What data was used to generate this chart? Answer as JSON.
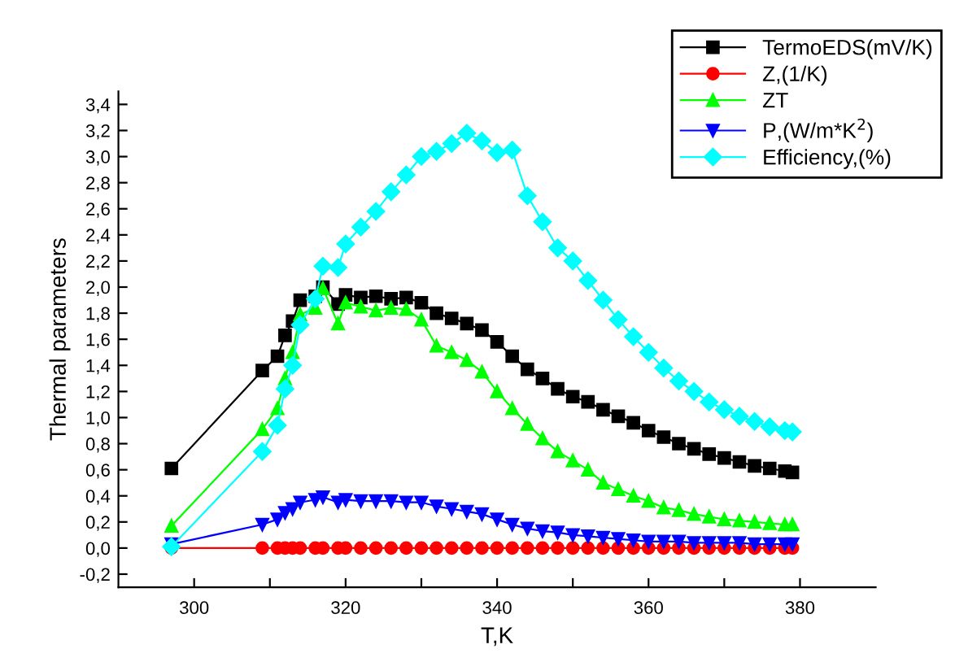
{
  "chart_data": {
    "type": "line",
    "xlabel": "T,K",
    "ylabel": "Thermal parameters",
    "x": [
      297,
      309,
      311,
      312,
      313,
      314,
      316,
      317,
      319,
      320,
      322,
      324,
      326,
      328,
      330,
      332,
      334,
      336,
      338,
      340,
      342,
      344,
      346,
      348,
      350,
      352,
      354,
      356,
      358,
      360,
      362,
      364,
      366,
      368,
      370,
      372,
      374,
      376,
      378,
      379
    ],
    "xlim": [
      290,
      390
    ],
    "xticks": [
      {
        "value": 300,
        "label": "300"
      },
      {
        "value": 310,
        "label": null
      },
      {
        "value": 320,
        "label": "320"
      },
      {
        "value": 330,
        "label": null
      },
      {
        "value": 340,
        "label": "340"
      },
      {
        "value": 350,
        "label": null
      },
      {
        "value": 360,
        "label": "360"
      },
      {
        "value": 370,
        "label": null
      },
      {
        "value": 380,
        "label": "380"
      }
    ],
    "ylim": [
      -0.3,
      3.5
    ],
    "yticks": [
      {
        "value": -0.2,
        "label": "-0,2"
      },
      {
        "value": 0,
        "label": "0,0"
      },
      {
        "value": 0.2,
        "label": "0,2"
      },
      {
        "value": 0.4,
        "label": "0,4"
      },
      {
        "value": 0.6,
        "label": "0,6"
      },
      {
        "value": 0.8,
        "label": "0,8"
      },
      {
        "value": 1.0,
        "label": "1,0"
      },
      {
        "value": 1.2,
        "label": "1,2"
      },
      {
        "value": 1.4,
        "label": "1,4"
      },
      {
        "value": 1.6,
        "label": "1,6"
      },
      {
        "value": 1.8,
        "label": "1,8"
      },
      {
        "value": 2.0,
        "label": "2,0"
      },
      {
        "value": 2.2,
        "label": "2,2"
      },
      {
        "value": 2.4,
        "label": "2,4"
      },
      {
        "value": 2.6,
        "label": "2,6"
      },
      {
        "value": 2.8,
        "label": "2,8"
      },
      {
        "value": 3.0,
        "label": "3,0"
      },
      {
        "value": 3.2,
        "label": "3,2"
      },
      {
        "value": 3.4,
        "label": "3,4"
      }
    ],
    "grid": false,
    "legend": "top right",
    "line_style": "solid",
    "series": [
      {
        "name": "TermoEDS(mV/K)",
        "color": "#000000",
        "marker": "square",
        "values": [
          0.61,
          1.36,
          1.47,
          1.63,
          1.74,
          1.9,
          1.93,
          2.0,
          1.87,
          1.94,
          1.92,
          1.93,
          1.91,
          1.92,
          1.88,
          1.8,
          1.76,
          1.72,
          1.67,
          1.58,
          1.47,
          1.37,
          1.3,
          1.22,
          1.16,
          1.12,
          1.06,
          1.01,
          0.96,
          0.9,
          0.85,
          0.8,
          0.76,
          0.72,
          0.69,
          0.66,
          0.63,
          0.61,
          0.59,
          0.58
        ]
      },
      {
        "name": "Z,(1/K)",
        "color": "#ff0000",
        "marker": "circle",
        "values": [
          0,
          0,
          0,
          0,
          0,
          0,
          0,
          0,
          0,
          0,
          0,
          0,
          0,
          0,
          0,
          0,
          0,
          0,
          0,
          0,
          0,
          0,
          0,
          0,
          0,
          0,
          0,
          0,
          0,
          0,
          0,
          0,
          0,
          0,
          0,
          0,
          0,
          0,
          0,
          0
        ]
      },
      {
        "name": "ZT",
        "color": "#00ff00",
        "marker": "triangle",
        "values": [
          0.17,
          0.91,
          1.07,
          1.3,
          1.5,
          1.79,
          1.84,
          1.99,
          1.72,
          1.88,
          1.85,
          1.82,
          1.84,
          1.83,
          1.75,
          1.55,
          1.5,
          1.44,
          1.35,
          1.2,
          1.07,
          0.95,
          0.84,
          0.74,
          0.67,
          0.6,
          0.5,
          0.45,
          0.4,
          0.36,
          0.31,
          0.29,
          0.26,
          0.24,
          0.22,
          0.21,
          0.2,
          0.19,
          0.18,
          0.18
        ]
      },
      {
        "name": "P,(W/m*K$^{2}$)",
        "color": "#0000ff",
        "marker": "triangle_down",
        "values": [
          0.03,
          0.18,
          0.22,
          0.27,
          0.3,
          0.35,
          0.37,
          0.39,
          0.35,
          0.37,
          0.36,
          0.36,
          0.36,
          0.35,
          0.35,
          0.32,
          0.3,
          0.28,
          0.26,
          0.22,
          0.18,
          0.15,
          0.13,
          0.12,
          0.1,
          0.09,
          0.08,
          0.07,
          0.06,
          0.05,
          0.05,
          0.05,
          0.04,
          0.04,
          0.04,
          0.04,
          0.03,
          0.03,
          0.03,
          0.03
        ]
      },
      {
        "name": "Efficiency,(%)",
        "color": "#00ffff",
        "marker": "diamond",
        "values": [
          0.01,
          0.74,
          0.94,
          1.22,
          1.4,
          1.71,
          1.91,
          2.16,
          2.15,
          2.33,
          2.46,
          2.58,
          2.73,
          2.86,
          3.0,
          3.04,
          3.1,
          3.18,
          3.12,
          3.03,
          3.05,
          2.7,
          2.5,
          2.3,
          2.2,
          2.05,
          1.9,
          1.75,
          1.62,
          1.5,
          1.38,
          1.28,
          1.2,
          1.12,
          1.06,
          1.01,
          0.97,
          0.93,
          0.9,
          0.89
        ]
      }
    ]
  }
}
